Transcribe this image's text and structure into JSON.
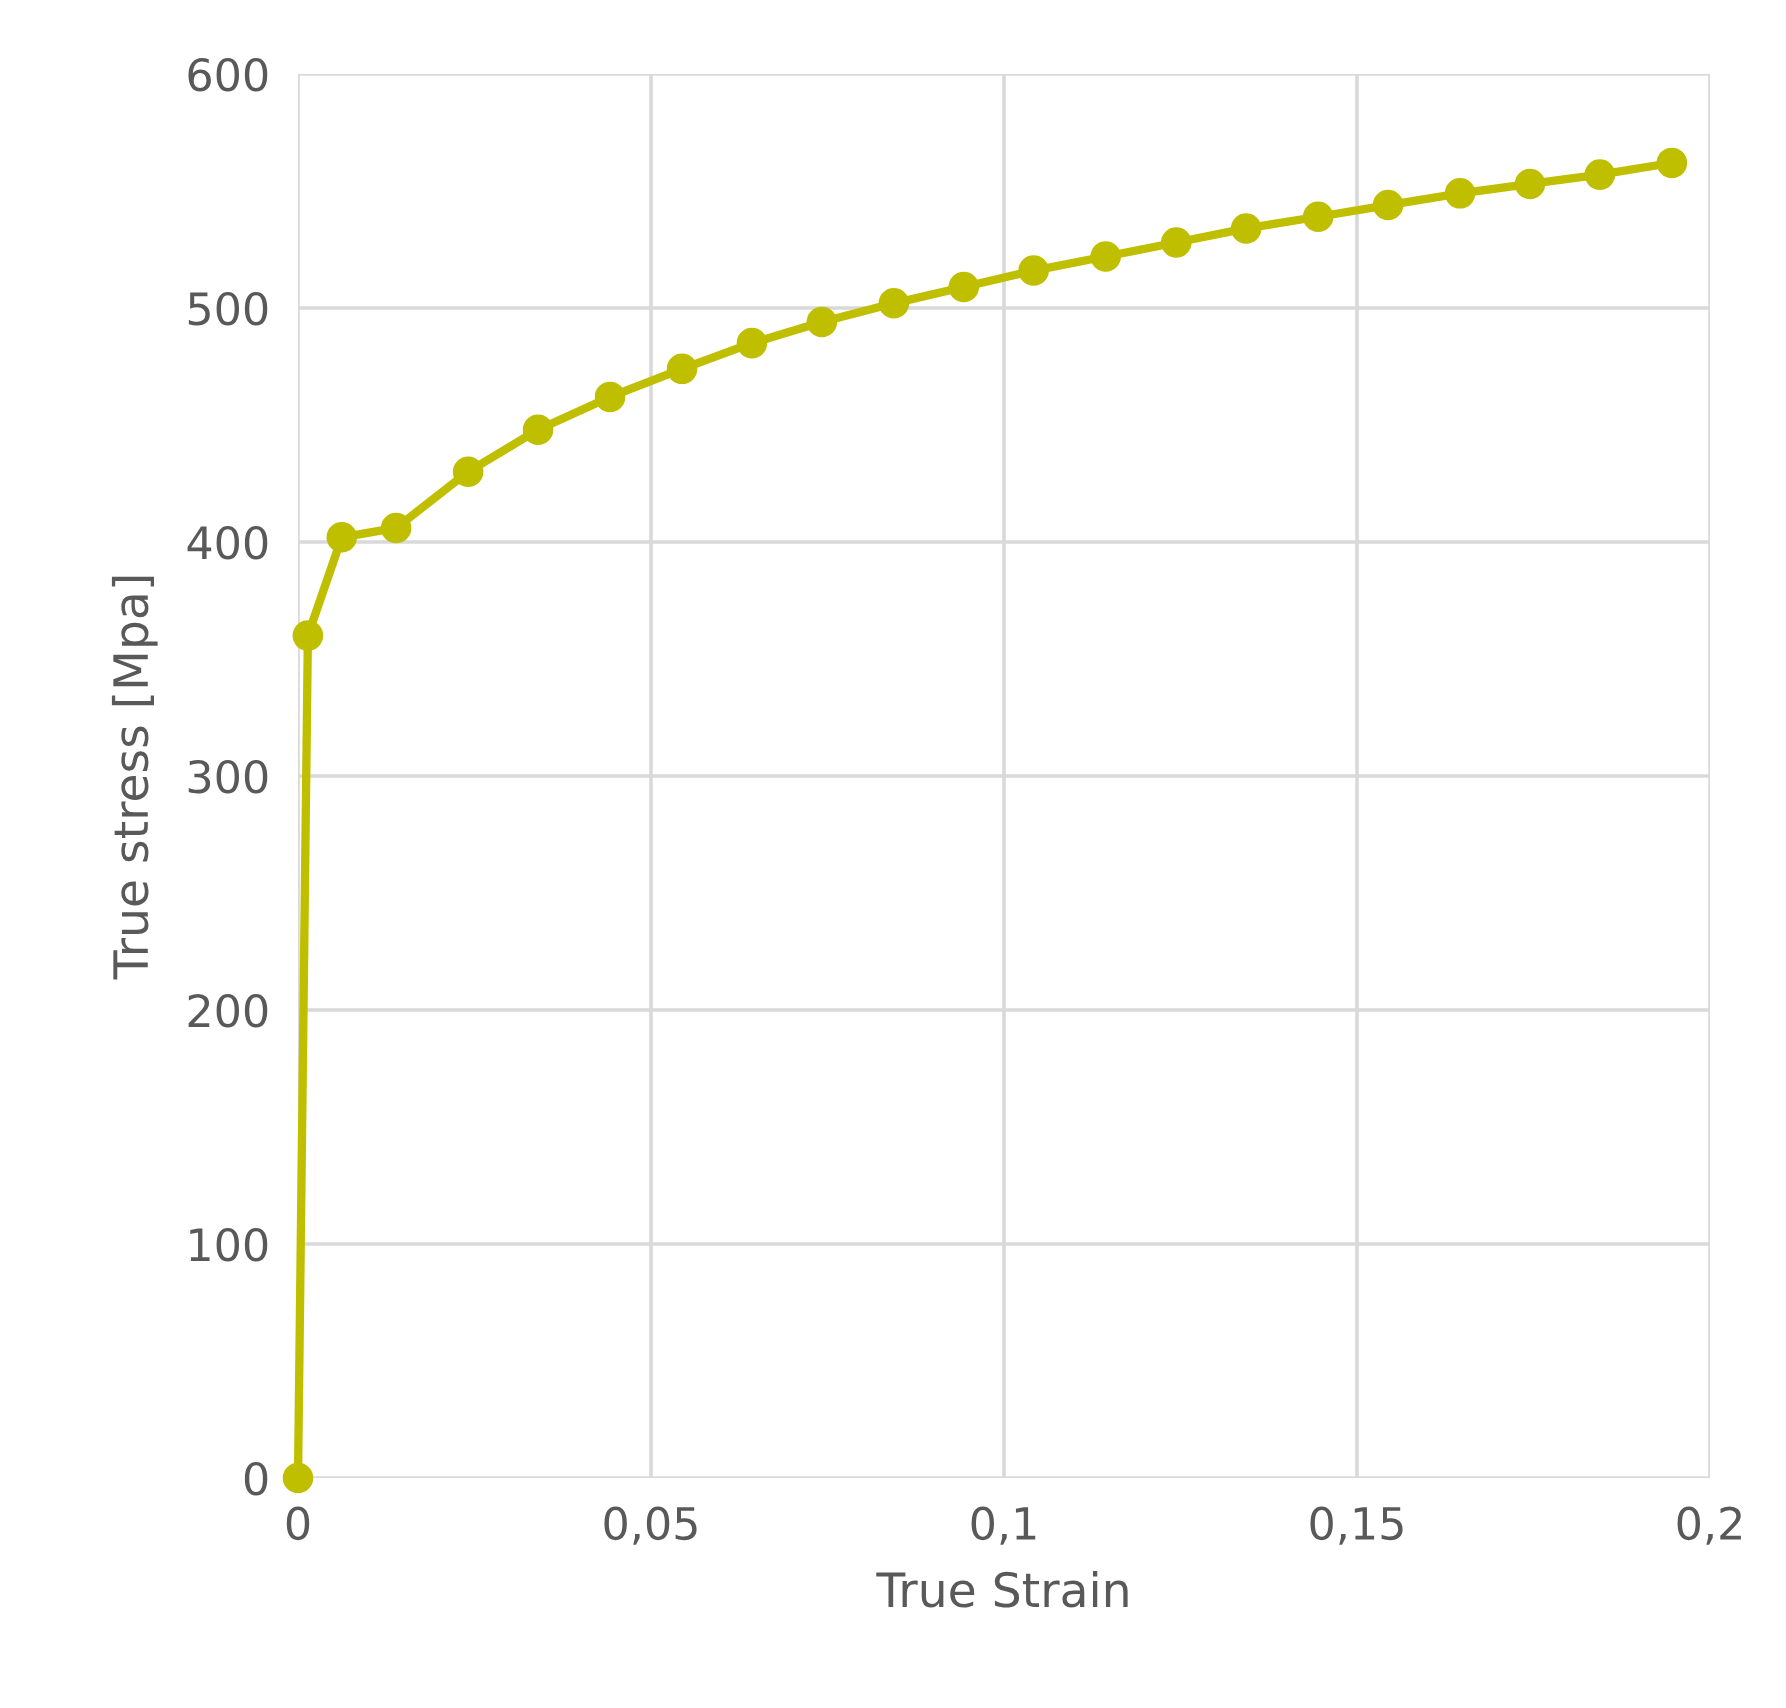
{
  "chart_data": {
    "type": "line",
    "xlabel": "True Strain",
    "ylabel": "True stress [Mpa]",
    "x": [
      0,
      0.0014,
      0.0062,
      0.0139,
      0.0241,
      0.034,
      0.0442,
      0.0544,
      0.0643,
      0.0742,
      0.0844,
      0.0943,
      0.1042,
      0.1144,
      0.1244,
      0.1343,
      0.1445,
      0.1544,
      0.1646,
      0.1745,
      0.1844,
      0.1946
    ],
    "series": [
      {
        "color": "#bfbf00",
        "values": [
          0,
          360,
          402,
          406,
          430,
          448,
          462,
          474,
          485,
          494,
          502,
          509,
          516,
          522,
          528,
          534,
          539,
          544,
          549,
          553,
          557,
          562
        ]
      }
    ],
    "xlim": [
      0,
      0.2
    ],
    "xticks": [
      0,
      {
        "value": 0.05,
        "label": "0,05"
      },
      {
        "value": 0.1,
        "label": "0,1"
      },
      {
        "value": 0.15,
        "label": "0,15"
      },
      {
        "value": 0.2,
        "label": "0,2"
      }
    ],
    "ylim": [
      0,
      600
    ],
    "yticks": [
      0,
      100,
      200,
      300,
      400,
      500,
      600
    ],
    "grid": true,
    "marker": "circle",
    "line_style": "solid"
  }
}
